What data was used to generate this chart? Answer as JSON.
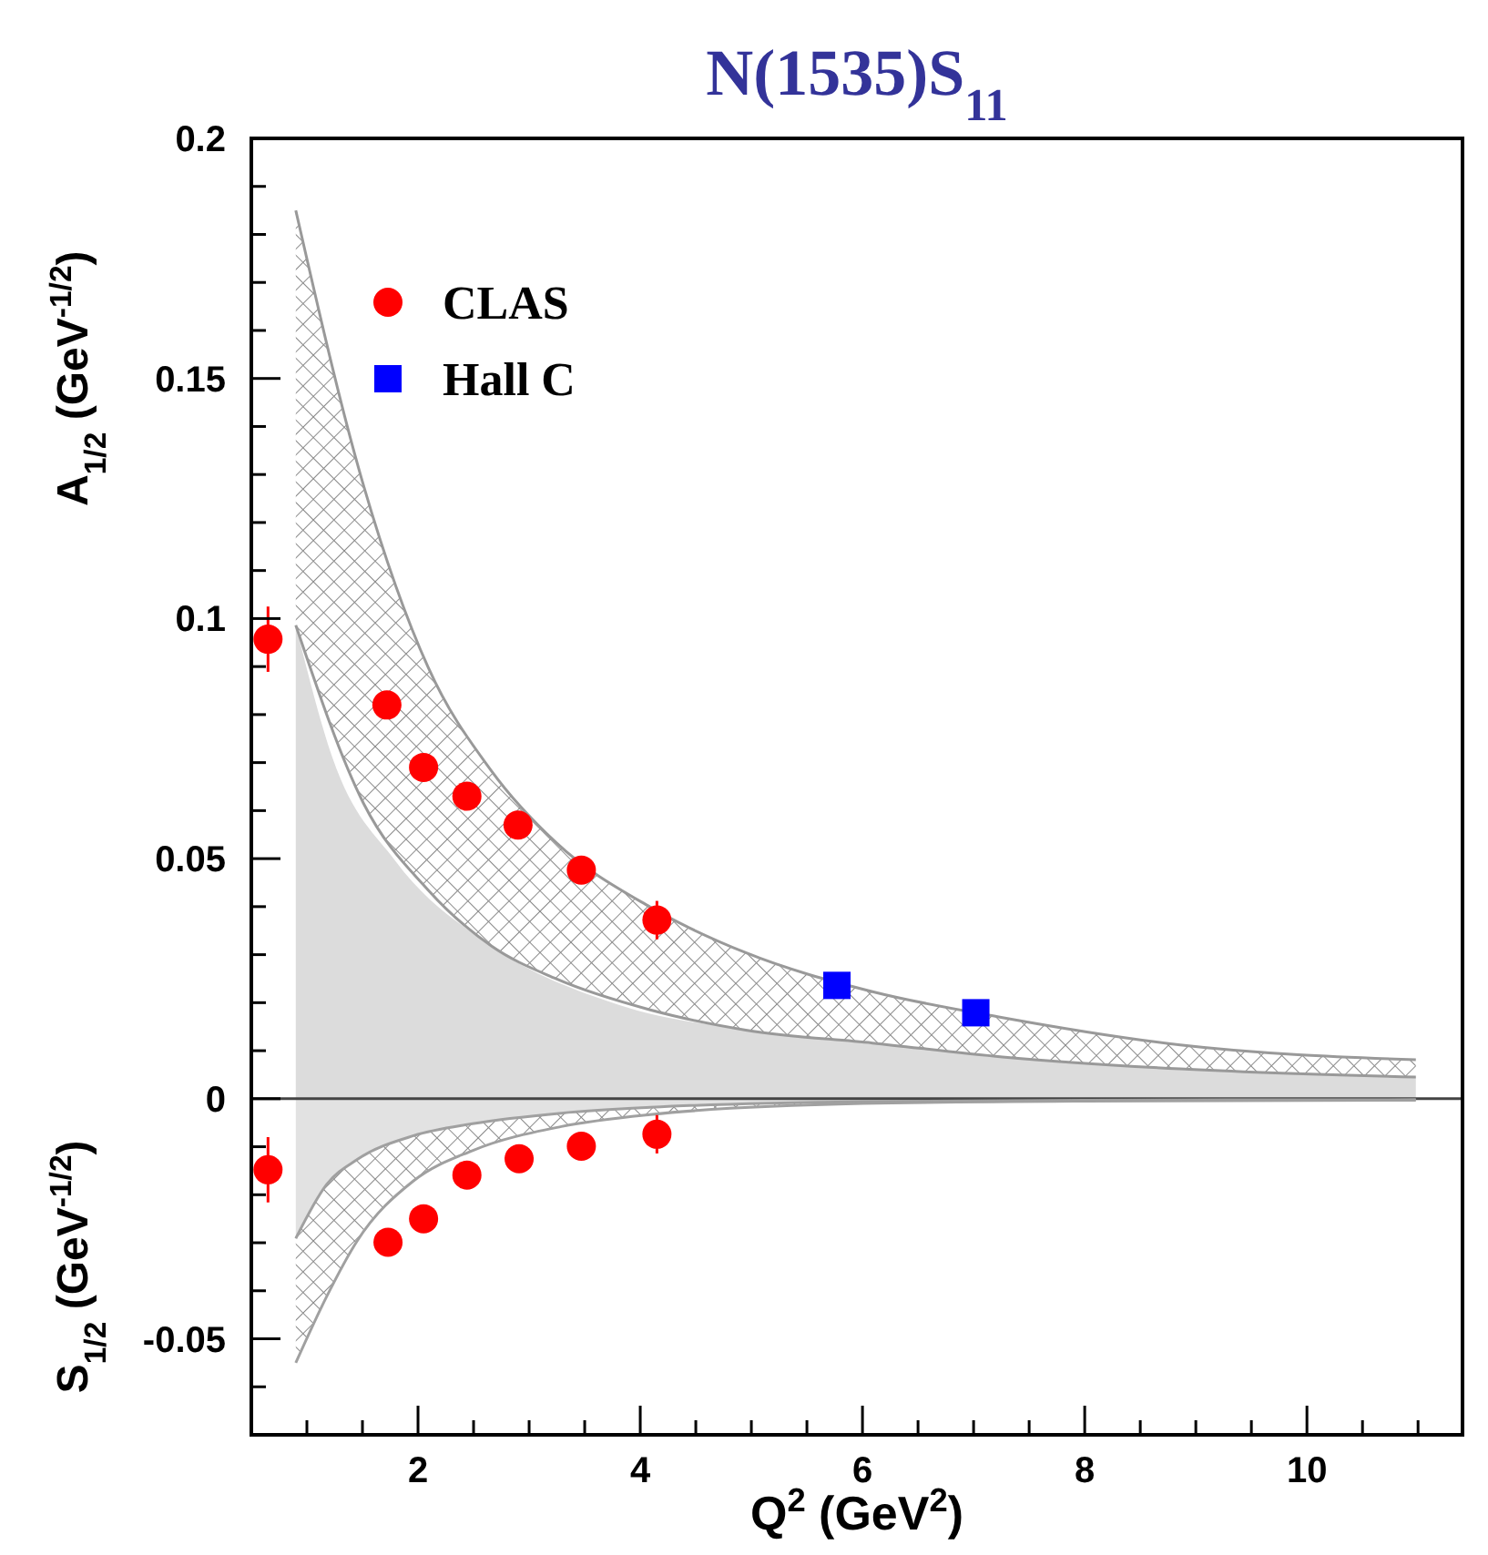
{
  "chart_data": {
    "type": "scatter",
    "title": "N(1535)S$_{11}$",
    "xlabel": "Q$^{2}$ (GeV$^{2}$)",
    "ylabel": "A$_{1/2}$ (GeV$^{-1/2}$)",
    "annotations": [
      "S$_{1/2}$ (GeV$^{-1/2}$)"
    ],
    "xlim": [
      0.5,
      11.4
    ],
    "ylim": [
      -0.07,
      0.2
    ],
    "xticks": [
      {
        "value": 1,
        "label": null
      },
      {
        "value": 1.5,
        "label": null
      },
      2,
      {
        "value": 2.5,
        "label": null
      },
      {
        "value": 3,
        "label": null
      },
      {
        "value": 3.5,
        "label": null
      },
      4,
      {
        "value": 4.5,
        "label": null
      },
      {
        "value": 5,
        "label": null
      },
      {
        "value": 5.5,
        "label": null
      },
      6,
      {
        "value": 6.5,
        "label": null
      },
      {
        "value": 7,
        "label": null
      },
      {
        "value": 7.5,
        "label": null
      },
      8,
      {
        "value": 8.5,
        "label": null
      },
      {
        "value": 9,
        "label": null
      },
      {
        "value": 9.5,
        "label": null
      },
      10,
      {
        "value": 10.5,
        "label": null
      },
      {
        "value": 11,
        "label": null
      }
    ],
    "yticks": [
      {
        "value": -0.06,
        "label": null
      },
      -0.05,
      {
        "value": -0.04,
        "label": null
      },
      {
        "value": -0.03,
        "label": null
      },
      {
        "value": -0.02,
        "label": null
      },
      {
        "value": -0.01,
        "label": null
      },
      0,
      {
        "value": 0.01,
        "label": null
      },
      {
        "value": 0.02,
        "label": null
      },
      {
        "value": 0.03,
        "label": null
      },
      {
        "value": 0.04,
        "label": null
      },
      0.05,
      {
        "value": 0.06,
        "label": null
      },
      {
        "value": 0.07,
        "label": null
      },
      {
        "value": 0.08,
        "label": null
      },
      {
        "value": 0.09,
        "label": null
      },
      0.1,
      {
        "value": 0.11,
        "label": null
      },
      {
        "value": 0.12,
        "label": null
      },
      {
        "value": 0.13,
        "label": null
      },
      {
        "value": 0.14,
        "label": null
      },
      0.15,
      {
        "value": 0.16,
        "label": null
      },
      {
        "value": 0.17,
        "label": null
      },
      {
        "value": 0.18,
        "label": null
      },
      {
        "value": 0.19,
        "label": null
      },
      0.2
    ],
    "grid": false,
    "legend": "top left",
    "ref_lines": [
      {
        "axis": "y",
        "value": 0,
        "color": "#444444"
      }
    ],
    "series": [
      {
        "type": "area",
        "color": "#dcdcdc",
        "x": [
          0.9,
          1.23,
          1.8,
          2.66,
          3.8,
          4.95,
          6.09,
          7.26,
          8.86,
          10.98
        ],
        "values": [
          0.0986,
          0.071,
          0.0494,
          0.0318,
          0.0196,
          0.0143,
          0.0116,
          0.0087,
          0.0062,
          0.0045
        ]
      },
      {
        "type": "area",
        "color": "#e2e2e2",
        "x": [
          0.9,
          1.18,
          1.45,
          1.96,
          2.49,
          3.29,
          4.09,
          6,
          8,
          10.98
        ],
        "values": [
          -0.0291,
          -0.0178,
          -0.0127,
          -0.0077,
          -0.0052,
          -0.003,
          -0.0018,
          -0.0006,
          -0.0003,
          -0.0002
        ]
      },
      {
        "type": "line",
        "color": "#999999",
        "marker": "none",
        "x": [
          0.9,
          1.51,
          2.09,
          2.66,
          3.24,
          4.09,
          4.95,
          6.09,
          7.26,
          8.86,
          10.98
        ],
        "values": [
          0.185,
          0.1277,
          0.0899,
          0.0683,
          0.0534,
          0.0399,
          0.0304,
          0.0223,
          0.0169,
          0.0112,
          0.0081
        ],
        "lower": [
          0.0986,
          0.0615,
          0.0435,
          0.0318,
          0.025,
          0.0185,
          0.0143,
          0.0116,
          0.0087,
          0.0062,
          0.0045
        ],
        "upper": [
          0.185,
          0.1277,
          0.0899,
          0.0683,
          0.0534,
          0.0399,
          0.0304,
          0.0223,
          0.0169,
          0.0112,
          0.0081
        ]
      },
      {
        "type": "line",
        "color": "#a0a0a0",
        "marker": "none",
        "x": [
          0.9,
          1.18,
          1.45,
          1.96,
          2.49,
          3.29,
          4.09,
          6,
          8,
          10.98
        ],
        "values": [
          -0.055,
          -0.0411,
          -0.0297,
          -0.0171,
          -0.0108,
          -0.0058,
          -0.0033,
          -0.001,
          -0.0005,
          -0.0003
        ],
        "lower": [
          -0.055,
          -0.0411,
          -0.0297,
          -0.0171,
          -0.0108,
          -0.0058,
          -0.0033,
          -0.001,
          -0.0005,
          -0.0003
        ],
        "upper": [
          -0.0291,
          -0.0178,
          -0.0127,
          -0.0077,
          -0.0052,
          -0.003,
          -0.0018,
          -0.0006,
          -0.0003,
          -0.0002
        ]
      },
      {
        "type": "scatter",
        "name": "CLAS",
        "color": "#ff0000",
        "marker": "circle",
        "x": [
          0.65,
          1.72,
          2.05,
          2.44,
          2.9,
          3.47,
          4.15,
          0.65,
          1.73,
          2.05,
          2.44,
          2.91,
          3.47,
          4.15
        ],
        "values": [
          0.0957,
          0.082,
          0.069,
          0.063,
          0.057,
          0.0476,
          0.0372,
          -0.0148,
          -0.0299,
          -0.025,
          -0.0159,
          -0.0125,
          -0.0099,
          -0.0074
        ],
        "errors": [
          0.0068,
          null,
          null,
          null,
          null,
          0.0027,
          0.004,
          0.0068,
          null,
          null,
          null,
          null,
          null,
          0.004
        ]
      },
      {
        "type": "scatter",
        "name": "Hall C",
        "color": "#0000ff",
        "marker": "square",
        "x": [
          5.77,
          7.02
        ],
        "values": [
          0.0236,
          0.0179
        ]
      }
    ]
  }
}
